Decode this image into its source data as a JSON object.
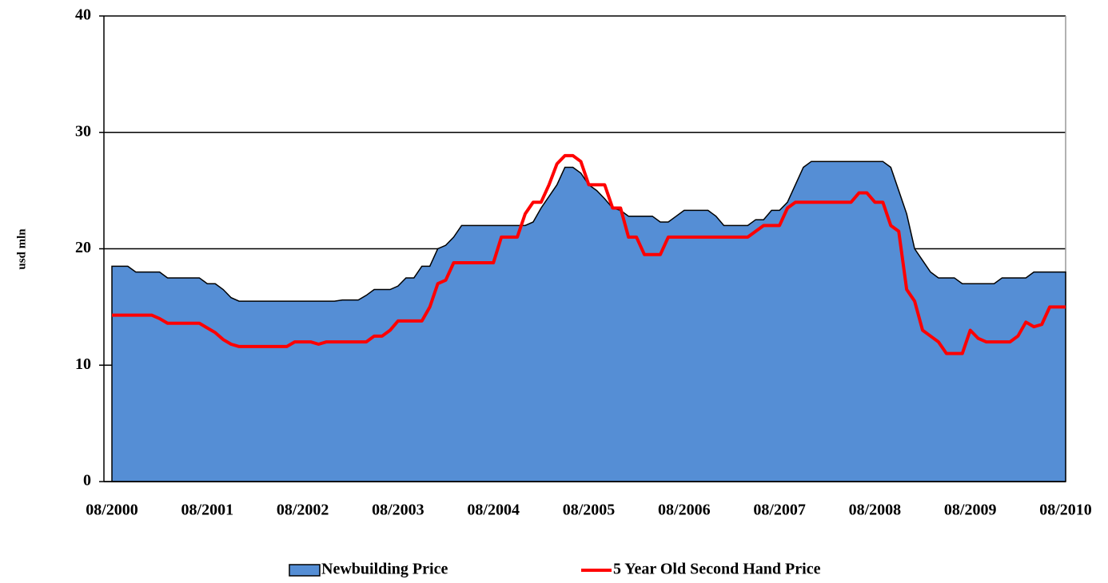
{
  "chart_data": {
    "type": "area-line",
    "y_axis_label": "usd mln",
    "categories": [
      "08/2000",
      null,
      null,
      null,
      null,
      null,
      null,
      null,
      null,
      null,
      null,
      null,
      "08/2001",
      null,
      null,
      null,
      null,
      null,
      null,
      null,
      null,
      null,
      null,
      null,
      "08/2002",
      null,
      null,
      null,
      null,
      null,
      null,
      null,
      null,
      null,
      null,
      null,
      "08/2003",
      null,
      null,
      null,
      null,
      null,
      null,
      null,
      null,
      null,
      null,
      null,
      "08/2004",
      null,
      null,
      null,
      null,
      null,
      null,
      null,
      null,
      null,
      null,
      null,
      "08/2005",
      null,
      null,
      null,
      null,
      null,
      null,
      null,
      null,
      null,
      null,
      null,
      "08/2006",
      null,
      null,
      null,
      null,
      null,
      null,
      null,
      null,
      null,
      null,
      null,
      "08/2007",
      null,
      null,
      null,
      null,
      null,
      null,
      null,
      null,
      null,
      null,
      null,
      "08/2008",
      null,
      null,
      null,
      null,
      null,
      null,
      null,
      null,
      null,
      null,
      null,
      "08/2009",
      null,
      null,
      null,
      null,
      null,
      null,
      null,
      null,
      null,
      null,
      null,
      "08/2010"
    ],
    "series": [
      {
        "name": "Newbuilding Price",
        "kind": "area",
        "color": "#558ed5",
        "values": [
          18.5,
          18.5,
          18.5,
          18,
          18,
          18,
          18,
          17.5,
          17.5,
          17.5,
          17.5,
          17.5,
          17,
          17,
          16.5,
          15.8,
          15.5,
          15.5,
          15.5,
          15.5,
          15.5,
          15.5,
          15.5,
          15.5,
          15.5,
          15.5,
          15.5,
          15.5,
          15.5,
          15.6,
          15.6,
          15.6,
          16,
          16.5,
          16.5,
          16.5,
          16.8,
          17.5,
          17.5,
          18.5,
          18.5,
          20,
          20.3,
          21,
          22,
          22,
          22,
          22,
          22,
          22,
          22,
          22,
          22,
          22.3,
          23.5,
          24.5,
          25.5,
          27,
          27,
          26.5,
          25.5,
          25,
          24.3,
          23.5,
          23.3,
          22.8,
          22.8,
          22.8,
          22.8,
          22.3,
          22.3,
          22.8,
          23.3,
          23.3,
          23.3,
          23.3,
          22.8,
          22,
          22,
          22,
          22,
          22.5,
          22.5,
          23.3,
          23.3,
          24,
          25.5,
          27,
          27.5,
          27.5,
          27.5,
          27.5,
          27.5,
          27.5,
          27.5,
          27.5,
          27.5,
          27.5,
          27,
          25,
          23,
          20,
          19,
          18,
          17.5,
          17.5,
          17.5,
          17,
          17,
          17,
          17,
          17,
          17.5,
          17.5,
          17.5,
          17.5,
          18,
          18,
          18,
          18,
          18
        ]
      },
      {
        "name": "5 Year Old Second Hand Price",
        "kind": "line",
        "color": "#ff0000",
        "values": [
          14.3,
          14.3,
          14.3,
          14.3,
          14.3,
          14.3,
          14,
          13.6,
          13.6,
          13.6,
          13.6,
          13.6,
          13.2,
          12.8,
          12.2,
          11.8,
          11.6,
          11.6,
          11.6,
          11.6,
          11.6,
          11.6,
          11.6,
          12,
          12,
          12,
          11.8,
          12,
          12,
          12,
          12,
          12,
          12,
          12.5,
          12.5,
          13,
          13.8,
          13.8,
          13.8,
          13.8,
          15,
          17,
          17.3,
          18.8,
          18.8,
          18.8,
          18.8,
          18.8,
          18.8,
          21,
          21,
          21,
          23,
          24,
          24,
          25.5,
          27.3,
          28,
          28,
          27.5,
          25.5,
          25.5,
          25.5,
          23.5,
          23.5,
          21,
          21,
          19.5,
          19.5,
          19.5,
          21,
          21,
          21,
          21,
          21,
          21,
          21,
          21,
          21,
          21,
          21,
          21.5,
          22,
          22,
          22,
          23.5,
          24,
          24,
          24,
          24,
          24,
          24,
          24,
          24,
          24.8,
          24.8,
          24,
          24,
          22,
          21.5,
          16.5,
          15.5,
          13,
          12.5,
          12,
          11,
          11,
          11,
          13,
          12.3,
          12,
          12,
          12,
          12,
          12.5,
          13.7,
          13.3,
          13.5,
          15,
          15,
          15
        ]
      }
    ],
    "ylim": [
      0,
      40
    ],
    "yticks": [
      0,
      10,
      20,
      30,
      40
    ],
    "grid": true,
    "legend": "bottom"
  }
}
